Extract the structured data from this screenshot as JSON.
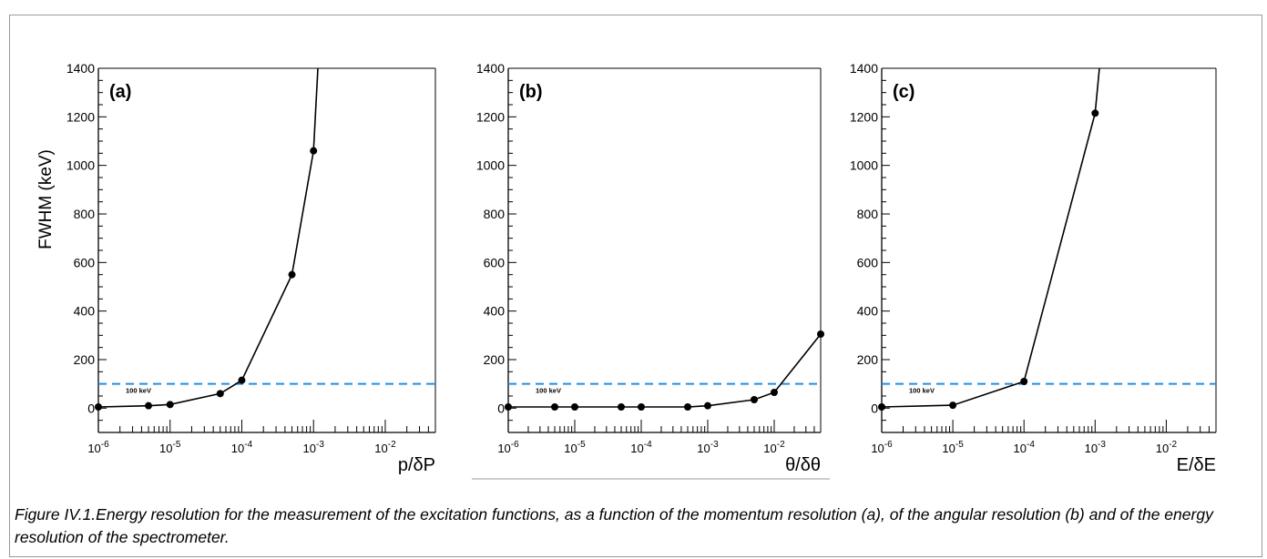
{
  "caption": "Figure IV.1.Energy resolution for the measurement of the excitation functions, as a function of the momentum resolution (a), of the angular resolution (b) and of the energy resolution of the spectrometer.",
  "colors": {
    "curve": "#000000",
    "threshold": "#1f8fe6"
  },
  "chart_data": [
    {
      "type": "line",
      "panel_label": "(a)",
      "xlabel": "p/δP",
      "ylabel": "FWHM (keV)",
      "xscale": "log",
      "xlim": [
        1e-06,
        0.05
      ],
      "ylim": [
        -100,
        1400
      ],
      "yticks": [
        0,
        200,
        400,
        600,
        800,
        1000,
        1200,
        1400
      ],
      "xticks": [
        {
          "v": 1e-06,
          "exp": "-6"
        },
        {
          "v": 1e-05,
          "exp": "-5"
        },
        {
          "v": 0.0001,
          "exp": "-4"
        },
        {
          "v": 0.001,
          "exp": "-3"
        },
        {
          "v": 0.01,
          "exp": "-2"
        }
      ],
      "x": [
        1e-06,
        5e-06,
        1e-05,
        5e-05,
        0.0001,
        0.0005,
        0.001
      ],
      "y": [
        5,
        10,
        15,
        60,
        115,
        550,
        1060
      ],
      "curve_end": {
        "x": 0.00115,
        "y": 1400
      },
      "threshold": {
        "y": 100,
        "label": "100 keV"
      }
    },
    {
      "type": "line",
      "panel_label": "(b)",
      "xlabel": "θ/δθ",
      "ylabel": "",
      "xscale": "log",
      "xlim": [
        1e-06,
        0.05
      ],
      "ylim": [
        -100,
        1400
      ],
      "yticks": [
        0,
        200,
        400,
        600,
        800,
        1000,
        1200,
        1400
      ],
      "xticks": [
        {
          "v": 1e-06,
          "exp": "-6"
        },
        {
          "v": 1e-05,
          "exp": "-5"
        },
        {
          "v": 0.0001,
          "exp": "-4"
        },
        {
          "v": 0.001,
          "exp": "-3"
        },
        {
          "v": 0.01,
          "exp": "-2"
        }
      ],
      "x": [
        1e-06,
        5e-06,
        1e-05,
        5e-05,
        0.0001,
        0.0005,
        0.001,
        0.005,
        0.01,
        0.05
      ],
      "y": [
        5,
        5,
        5,
        5,
        5,
        5,
        10,
        35,
        65,
        305
      ],
      "threshold": {
        "y": 100,
        "label": "100 keV"
      }
    },
    {
      "type": "line",
      "panel_label": "(c)",
      "xlabel": "E/δE",
      "ylabel": "",
      "xscale": "log",
      "xlim": [
        1e-06,
        0.05
      ],
      "ylim": [
        -100,
        1400
      ],
      "yticks": [
        0,
        200,
        400,
        600,
        800,
        1000,
        1200,
        1400
      ],
      "xticks": [
        {
          "v": 1e-06,
          "exp": "-6"
        },
        {
          "v": 1e-05,
          "exp": "-5"
        },
        {
          "v": 0.0001,
          "exp": "-4"
        },
        {
          "v": 0.001,
          "exp": "-3"
        },
        {
          "v": 0.01,
          "exp": "-2"
        }
      ],
      "x": [
        1e-06,
        1e-05,
        0.0001,
        0.001
      ],
      "y": [
        5,
        12,
        110,
        1215
      ],
      "curve_end": {
        "x": 0.00115,
        "y": 1400
      },
      "threshold": {
        "y": 100,
        "label": "100 keV"
      }
    }
  ]
}
